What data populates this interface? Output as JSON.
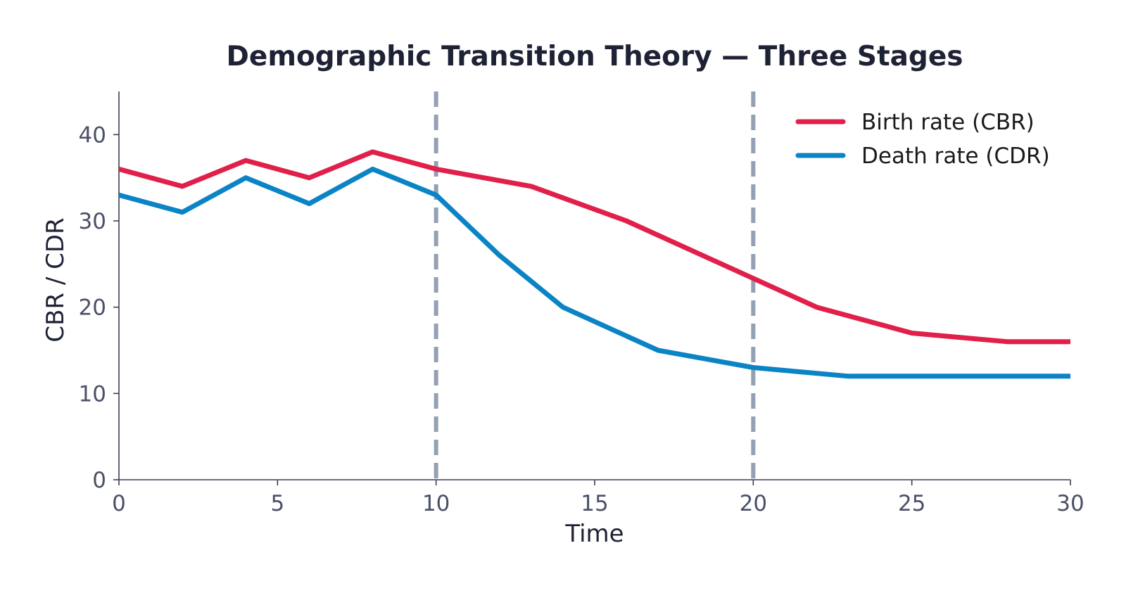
{
  "chart_data": {
    "type": "line",
    "title": "Demographic Transition Theory — Three Stages",
    "xlabel": "Time",
    "ylabel": "CBR / CDR",
    "xlim": [
      0,
      30
    ],
    "ylim": [
      0,
      45
    ],
    "xticks": [
      0,
      5,
      10,
      15,
      20,
      25,
      30
    ],
    "yticks": [
      0,
      10,
      20,
      30,
      40
    ],
    "grid": false,
    "legend_position": "top-right",
    "stage_boundaries": [
      10,
      20
    ],
    "series": [
      {
        "name": "Birth rate (CBR)",
        "color": "#e0204a",
        "x": [
          0,
          2,
          4,
          6,
          8,
          10,
          13,
          16,
          19,
          22,
          25,
          28,
          30
        ],
        "y": [
          36,
          34,
          37,
          35,
          38,
          36,
          34,
          30,
          25,
          20,
          17,
          16,
          16
        ]
      },
      {
        "name": "Death rate (CDR)",
        "color": "#0b84c6",
        "x": [
          0,
          2,
          4,
          6,
          8,
          10,
          12,
          14,
          17,
          20,
          23,
          26,
          30
        ],
        "y": [
          33,
          31,
          35,
          32,
          36,
          33,
          26,
          20,
          15,
          13,
          12,
          12,
          12
        ]
      }
    ],
    "colors": {
      "axis": "#3a3f52",
      "stage_line": "#94a0b4"
    }
  }
}
